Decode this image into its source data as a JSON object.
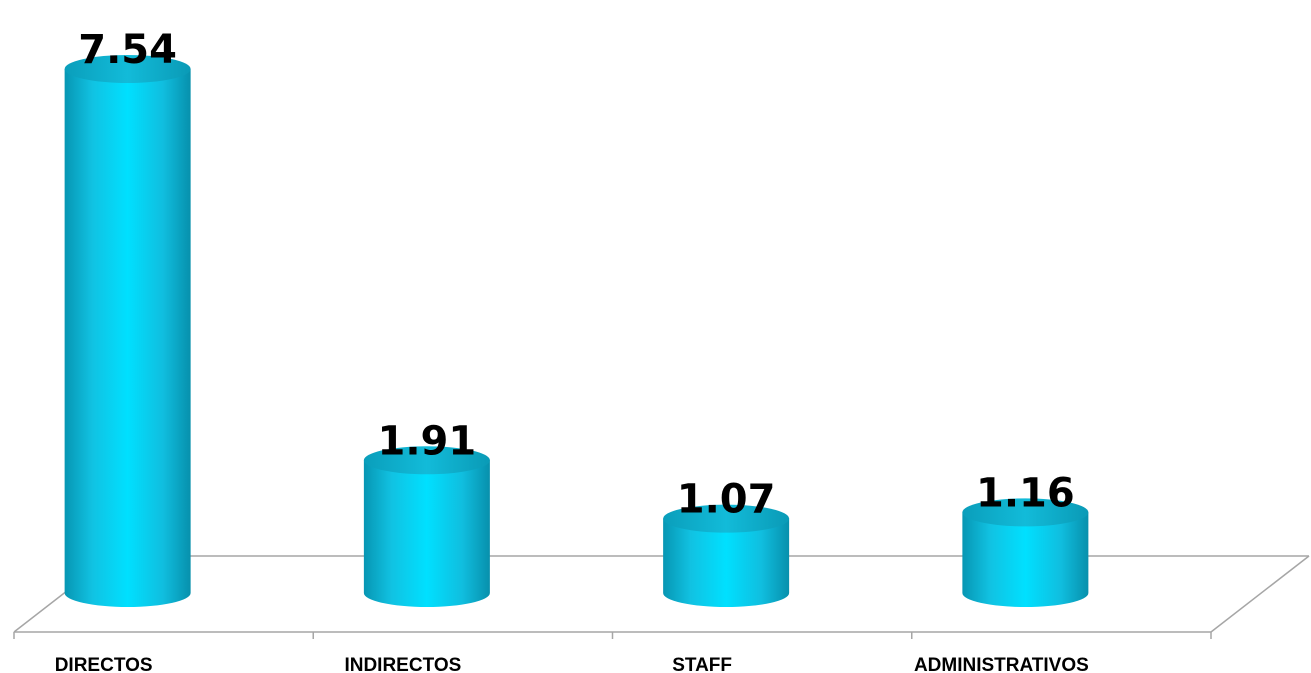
{
  "chart_data": {
    "type": "bar",
    "style": "3d-cylinder",
    "categories": [
      "DIRECTOS",
      "INDIRECTOS",
      "STAFF",
      "ADMINISTRATIVOS"
    ],
    "values": [
      7.54,
      1.91,
      1.07,
      1.16
    ],
    "data_labels": [
      "7.54",
      "1.91",
      "1.07",
      "1.16"
    ],
    "title": "",
    "xlabel": "",
    "ylabel": "",
    "ylim": [
      0,
      8
    ],
    "grid": false,
    "legend": "none",
    "bar_color": "#13C6E6",
    "bar_top_color": "#0FB3D0",
    "floor_line_color": "#A6A6A6"
  }
}
